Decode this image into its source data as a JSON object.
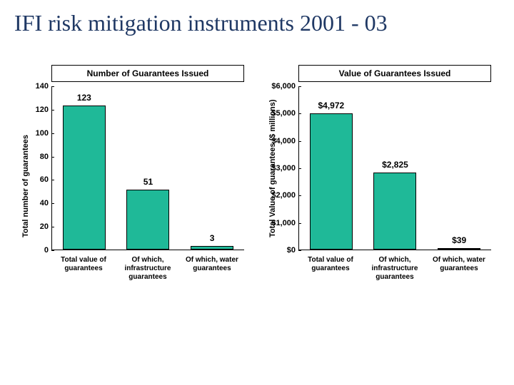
{
  "title": "IFI risk mitigation instruments 2001 - 03",
  "title_color": "#1f3864",
  "title_fontsize": 32,
  "chart_left": {
    "type": "bar",
    "title": "Number of Guarantees Issued",
    "title_fontsize": 12,
    "y_axis_label": "Total number of guarantees",
    "y_max": 140,
    "y_ticks": [
      0,
      20,
      40,
      60,
      80,
      100,
      120,
      140
    ],
    "y_tick_format": "plain",
    "categories": [
      "Total value of guarantees",
      "Of which, infrastructure guarantees",
      "Of which, water guarantees"
    ],
    "values": [
      123,
      51,
      3
    ],
    "value_labels": [
      "123",
      "51",
      "3"
    ],
    "bar_color": "#1fb998",
    "bar_border": "#000000",
    "label_fontsize": 12,
    "axis_fontsize": 11
  },
  "chart_right": {
    "type": "bar",
    "title": "Value of Guarantees Issued",
    "title_fontsize": 12,
    "y_axis_label": "Total Value of guarantees ($ millions)",
    "y_max": 6000,
    "y_ticks": [
      0,
      1000,
      2000,
      3000,
      4000,
      5000,
      6000
    ],
    "y_tick_format": "currency",
    "categories": [
      "Total value of guarantees",
      "Of which, infrastructure guarantees",
      "Of which, water guarantees"
    ],
    "values": [
      4972,
      2825,
      39
    ],
    "value_labels": [
      "$4,972",
      "$2,825",
      "$39"
    ],
    "bar_color": "#1fb998",
    "bar_border": "#000000",
    "label_fontsize": 12,
    "axis_fontsize": 11
  },
  "background_color": "#ffffff"
}
